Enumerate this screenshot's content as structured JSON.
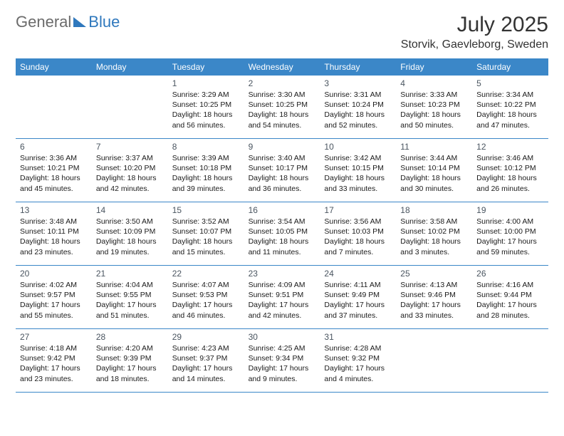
{
  "brand": {
    "part1": "General",
    "part2": "Blue"
  },
  "title": "July 2025",
  "location": "Storvik, Gaevleborg, Sweden",
  "colors": {
    "header_bar": "#3b87c8",
    "header_text": "#ffffff",
    "divider": "#3b87c8",
    "logo_blue": "#2f78bd",
    "text": "#1a1a1a"
  },
  "layout": {
    "columns": 7,
    "rows": 5
  },
  "dow": [
    "Sunday",
    "Monday",
    "Tuesday",
    "Wednesday",
    "Thursday",
    "Friday",
    "Saturday"
  ],
  "weeks": [
    [
      null,
      null,
      {
        "n": "1",
        "sr": "3:29 AM",
        "ss": "10:25 PM",
        "dl": "18 hours and 56 minutes."
      },
      {
        "n": "2",
        "sr": "3:30 AM",
        "ss": "10:25 PM",
        "dl": "18 hours and 54 minutes."
      },
      {
        "n": "3",
        "sr": "3:31 AM",
        "ss": "10:24 PM",
        "dl": "18 hours and 52 minutes."
      },
      {
        "n": "4",
        "sr": "3:33 AM",
        "ss": "10:23 PM",
        "dl": "18 hours and 50 minutes."
      },
      {
        "n": "5",
        "sr": "3:34 AM",
        "ss": "10:22 PM",
        "dl": "18 hours and 47 minutes."
      }
    ],
    [
      {
        "n": "6",
        "sr": "3:36 AM",
        "ss": "10:21 PM",
        "dl": "18 hours and 45 minutes."
      },
      {
        "n": "7",
        "sr": "3:37 AM",
        "ss": "10:20 PM",
        "dl": "18 hours and 42 minutes."
      },
      {
        "n": "8",
        "sr": "3:39 AM",
        "ss": "10:18 PM",
        "dl": "18 hours and 39 minutes."
      },
      {
        "n": "9",
        "sr": "3:40 AM",
        "ss": "10:17 PM",
        "dl": "18 hours and 36 minutes."
      },
      {
        "n": "10",
        "sr": "3:42 AM",
        "ss": "10:15 PM",
        "dl": "18 hours and 33 minutes."
      },
      {
        "n": "11",
        "sr": "3:44 AM",
        "ss": "10:14 PM",
        "dl": "18 hours and 30 minutes."
      },
      {
        "n": "12",
        "sr": "3:46 AM",
        "ss": "10:12 PM",
        "dl": "18 hours and 26 minutes."
      }
    ],
    [
      {
        "n": "13",
        "sr": "3:48 AM",
        "ss": "10:11 PM",
        "dl": "18 hours and 23 minutes."
      },
      {
        "n": "14",
        "sr": "3:50 AM",
        "ss": "10:09 PM",
        "dl": "18 hours and 19 minutes."
      },
      {
        "n": "15",
        "sr": "3:52 AM",
        "ss": "10:07 PM",
        "dl": "18 hours and 15 minutes."
      },
      {
        "n": "16",
        "sr": "3:54 AM",
        "ss": "10:05 PM",
        "dl": "18 hours and 11 minutes."
      },
      {
        "n": "17",
        "sr": "3:56 AM",
        "ss": "10:03 PM",
        "dl": "18 hours and 7 minutes."
      },
      {
        "n": "18",
        "sr": "3:58 AM",
        "ss": "10:02 PM",
        "dl": "18 hours and 3 minutes."
      },
      {
        "n": "19",
        "sr": "4:00 AM",
        "ss": "10:00 PM",
        "dl": "17 hours and 59 minutes."
      }
    ],
    [
      {
        "n": "20",
        "sr": "4:02 AM",
        "ss": "9:57 PM",
        "dl": "17 hours and 55 minutes."
      },
      {
        "n": "21",
        "sr": "4:04 AM",
        "ss": "9:55 PM",
        "dl": "17 hours and 51 minutes."
      },
      {
        "n": "22",
        "sr": "4:07 AM",
        "ss": "9:53 PM",
        "dl": "17 hours and 46 minutes."
      },
      {
        "n": "23",
        "sr": "4:09 AM",
        "ss": "9:51 PM",
        "dl": "17 hours and 42 minutes."
      },
      {
        "n": "24",
        "sr": "4:11 AM",
        "ss": "9:49 PM",
        "dl": "17 hours and 37 minutes."
      },
      {
        "n": "25",
        "sr": "4:13 AM",
        "ss": "9:46 PM",
        "dl": "17 hours and 33 minutes."
      },
      {
        "n": "26",
        "sr": "4:16 AM",
        "ss": "9:44 PM",
        "dl": "17 hours and 28 minutes."
      }
    ],
    [
      {
        "n": "27",
        "sr": "4:18 AM",
        "ss": "9:42 PM",
        "dl": "17 hours and 23 minutes."
      },
      {
        "n": "28",
        "sr": "4:20 AM",
        "ss": "9:39 PM",
        "dl": "17 hours and 18 minutes."
      },
      {
        "n": "29",
        "sr": "4:23 AM",
        "ss": "9:37 PM",
        "dl": "17 hours and 14 minutes."
      },
      {
        "n": "30",
        "sr": "4:25 AM",
        "ss": "9:34 PM",
        "dl": "17 hours and 9 minutes."
      },
      {
        "n": "31",
        "sr": "4:28 AM",
        "ss": "9:32 PM",
        "dl": "17 hours and 4 minutes."
      },
      null,
      null
    ]
  ],
  "labels": {
    "sunrise": "Sunrise:",
    "sunset": "Sunset:",
    "daylight": "Daylight:"
  }
}
